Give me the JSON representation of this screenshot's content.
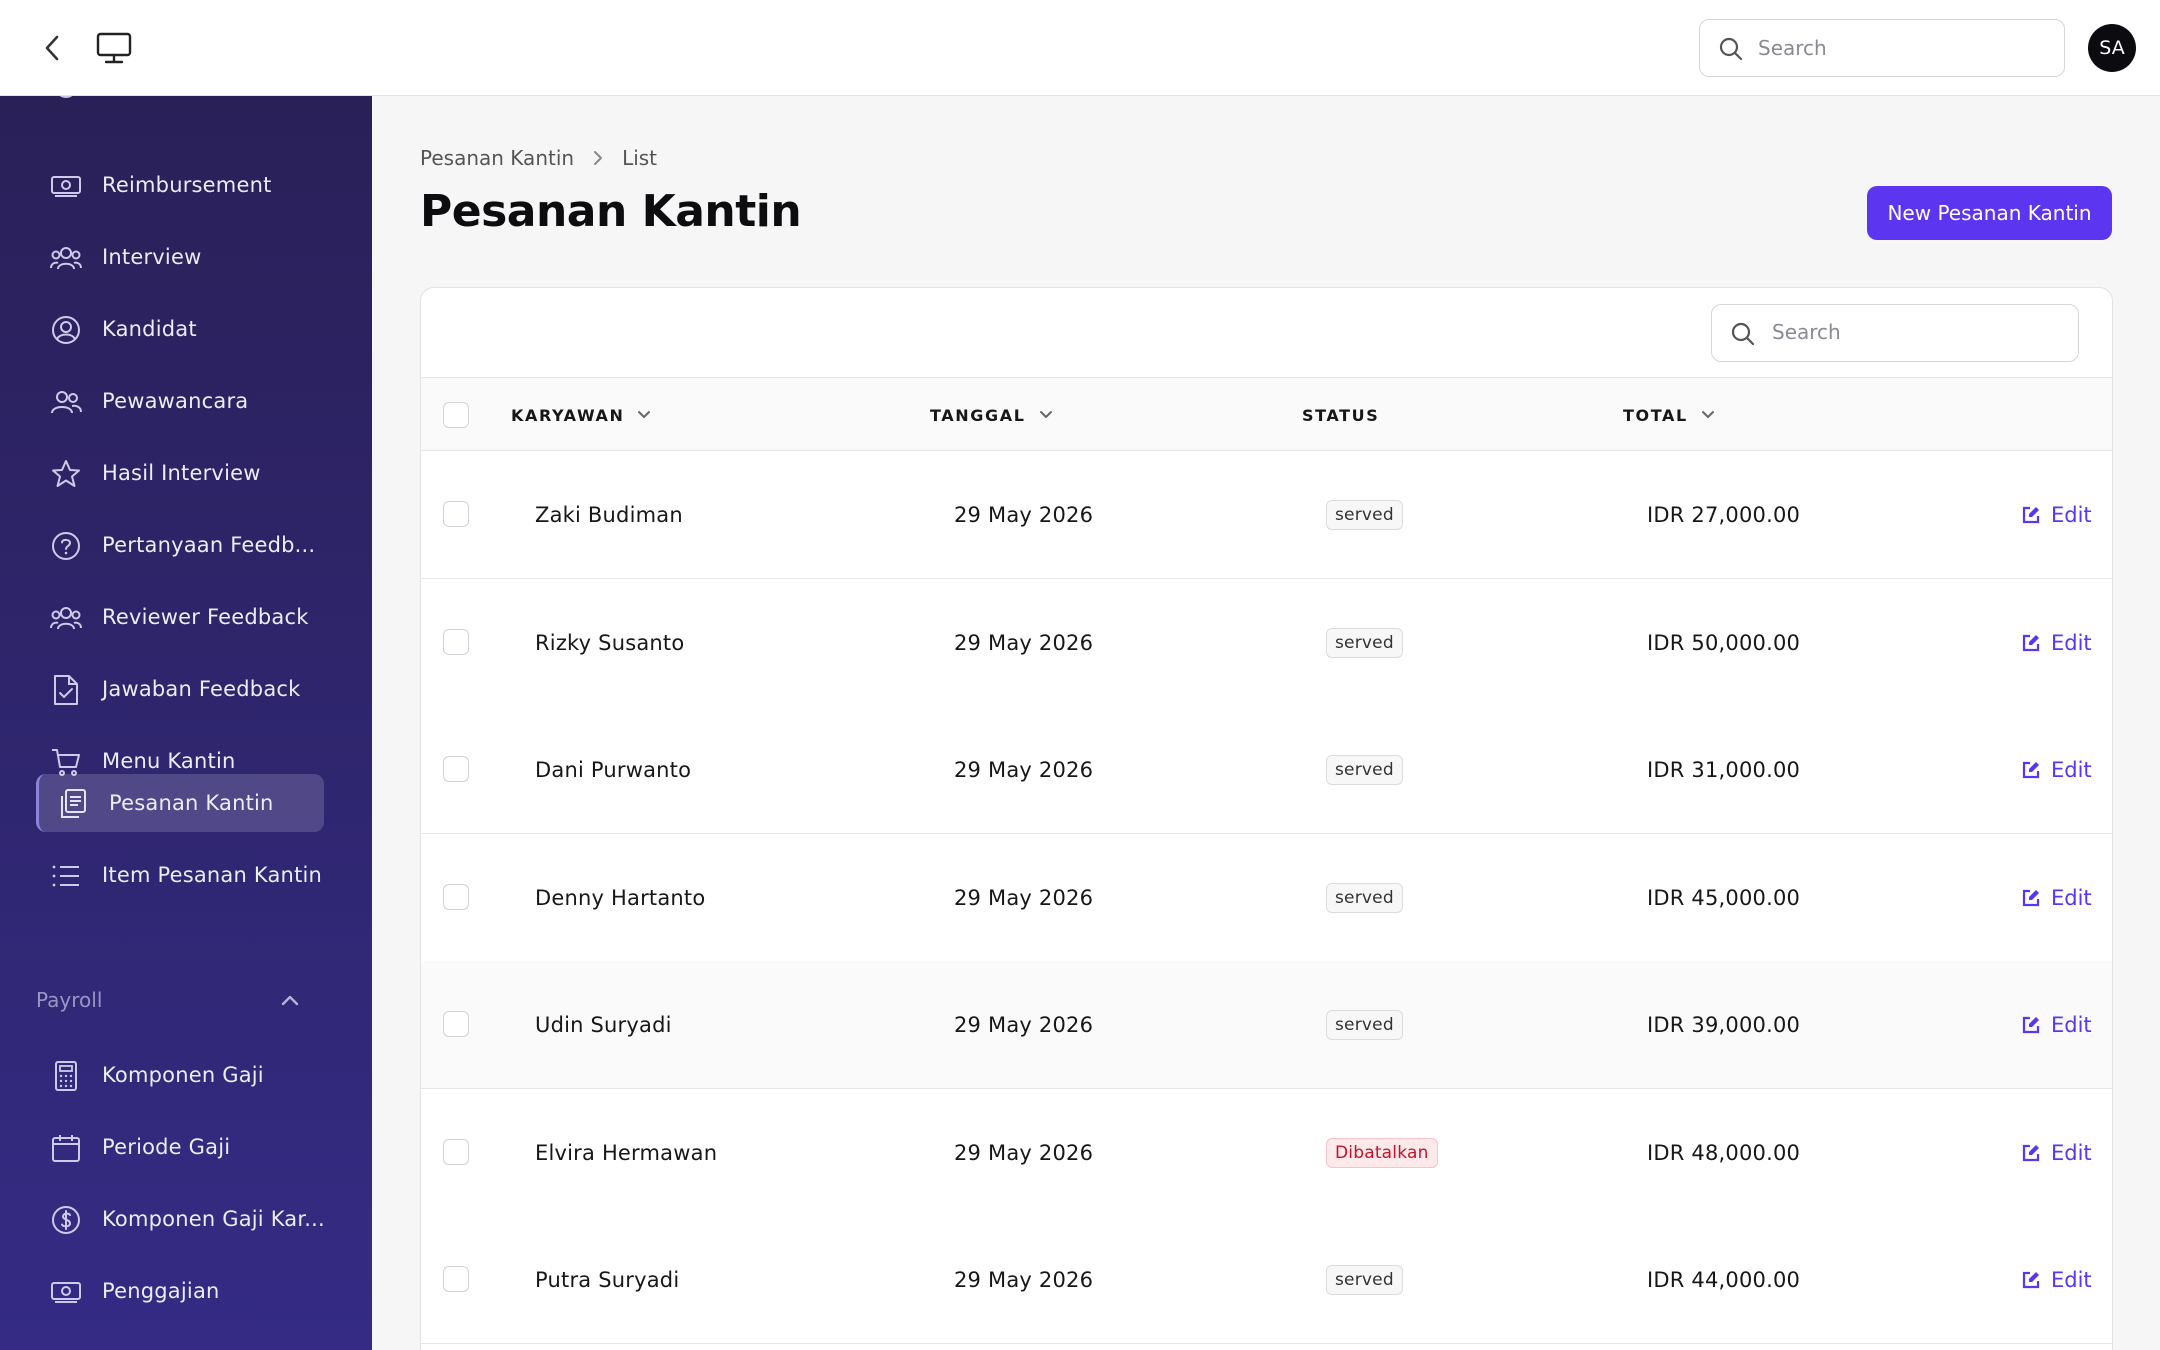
{
  "topbar": {
    "back_icon": "chevron-left-icon",
    "monitor_icon": "monitor-icon",
    "search_placeholder": "Search",
    "avatar_initials": "SA"
  },
  "sidebar": {
    "items": [
      {
        "label": "Reimbursement",
        "icon": "money-icon"
      },
      {
        "label": "Interview",
        "icon": "users-icon"
      },
      {
        "label": "Kandidat",
        "icon": "user-circle-icon"
      },
      {
        "label": "Pewawancara",
        "icon": "users-icon"
      },
      {
        "label": "Hasil Interview",
        "icon": "star-icon"
      },
      {
        "label": "Pertanyaan Feedb...",
        "icon": "question-icon"
      },
      {
        "label": "Reviewer Feedback",
        "icon": "users-icon"
      },
      {
        "label": "Jawaban Feedback",
        "icon": "document-check-icon"
      },
      {
        "label": "Menu Kantin",
        "icon": "cart-icon"
      },
      {
        "label": "Pesanan Kantin",
        "icon": "clipboard-icon",
        "active": true
      },
      {
        "label": "Item Pesanan Kantin",
        "icon": "list-icon"
      }
    ],
    "payroll_section": {
      "title": "Payroll",
      "items": [
        {
          "label": "Komponen Gaji",
          "icon": "calculator-icon"
        },
        {
          "label": "Periode Gaji",
          "icon": "calendar-icon"
        },
        {
          "label": "Komponen Gaji Kar...",
          "icon": "dollar-circle-icon"
        },
        {
          "label": "Penggajian",
          "icon": "money-icon"
        }
      ]
    }
  },
  "main": {
    "breadcrumb": [
      "Pesanan Kantin",
      "List"
    ],
    "title": "Pesanan Kantin",
    "new_button": "New Pesanan Kantin",
    "table_search_placeholder": "Search",
    "columns": [
      "KARYAWAN",
      "TANGGAL",
      "STATUS",
      "TOTAL"
    ],
    "edit_label": "Edit",
    "rows": [
      {
        "karyawan": "Zaki Budiman",
        "tanggal": "29 May 2026",
        "status": "served",
        "total": "IDR 27,000.00"
      },
      {
        "karyawan": "Rizky Susanto",
        "tanggal": "29 May 2026",
        "status": "served",
        "total": "IDR 50,000.00"
      },
      {
        "karyawan": "Dani Purwanto",
        "tanggal": "29 May 2026",
        "status": "served",
        "total": "IDR 31,000.00"
      },
      {
        "karyawan": "Denny Hartanto",
        "tanggal": "29 May 2026",
        "status": "served",
        "total": "IDR 45,000.00"
      },
      {
        "karyawan": "Udin Suryadi",
        "tanggal": "29 May 2026",
        "status": "served",
        "total": "IDR 39,000.00"
      },
      {
        "karyawan": "Elvira Hermawan",
        "tanggal": "29 May 2026",
        "status": "Dibatalkan",
        "total": "IDR 48,000.00"
      },
      {
        "karyawan": "Putra Suryadi",
        "tanggal": "29 May 2026",
        "status": "served",
        "total": "IDR 44,000.00"
      }
    ]
  },
  "colors": {
    "accent": "#5b35f0",
    "sidebar_top": "#2a2058",
    "sidebar_bottom": "#352b85",
    "cancel_text": "#c0142b",
    "cancel_bg": "#fde8ea"
  }
}
